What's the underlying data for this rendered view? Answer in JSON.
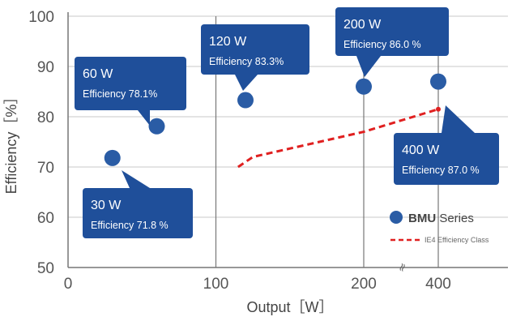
{
  "chart_data": {
    "type": "scatter",
    "xlabel": "Output［W］",
    "ylabel": "Efficiency［%］",
    "ylim": [
      50,
      100
    ],
    "y_ticks": [
      "50",
      "60",
      "70",
      "80",
      "90",
      "100"
    ],
    "x_ticks": [
      "0",
      "100",
      "200",
      "400"
    ],
    "x_axis_break": "between 200 and 400",
    "break_symbol": "≈",
    "grid": true,
    "legend_position": "bottom-right",
    "series": [
      {
        "name": "BMU Series",
        "name_bold": "BMU",
        "name_rest": " Series",
        "kind": "points",
        "color": "#2a5ca5",
        "points": [
          {
            "x": 30,
            "y": 71.8,
            "label_line1": "30 W",
            "label_line2": "Efficiency 71.8 %"
          },
          {
            "x": 60,
            "y": 78.1,
            "label_line1": "60 W",
            "label_line2": "Efficiency 78.1%"
          },
          {
            "x": 120,
            "y": 83.3,
            "label_line1": "120 W",
            "label_line2": "Efficiency 83.3%"
          },
          {
            "x": 200,
            "y": 86.0,
            "label_line1": "200 W",
            "label_line2": "Efficiency 86.0 %"
          },
          {
            "x": 400,
            "y": 87.0,
            "label_line1": "400 W",
            "label_line2": "Efficiency 87.0 %"
          }
        ]
      },
      {
        "name": "IE4 Efficiency Class",
        "kind": "dashed-line",
        "color": "#e02020",
        "points": [
          {
            "x": 115,
            "y": 70
          },
          {
            "x": 125,
            "y": 72
          },
          {
            "x": 200,
            "y": 77
          },
          {
            "x": 400,
            "y": 81.5
          }
        ]
      }
    ],
    "callout_color": "#1f4f9a"
  }
}
